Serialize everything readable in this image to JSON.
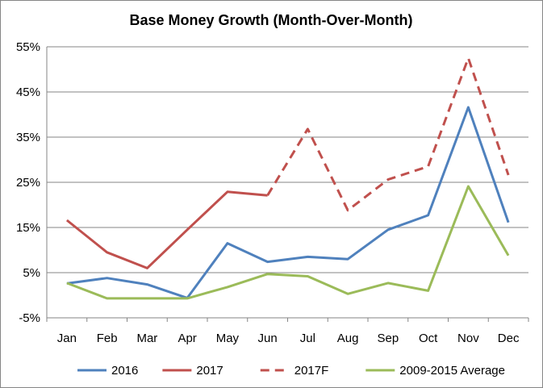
{
  "chart_data": {
    "type": "line",
    "title": "Base Money Growth (Month-Over-Month)",
    "xlabel": "",
    "ylabel": "",
    "categories": [
      "Jan",
      "Feb",
      "Mar",
      "Apr",
      "May",
      "Jun",
      "Jul",
      "Aug",
      "Sep",
      "Oct",
      "Nov",
      "Dec"
    ],
    "ylim": [
      -5,
      55
    ],
    "yticks": [
      -5,
      5,
      15,
      25,
      35,
      45,
      55
    ],
    "ytick_labels": [
      "-5%",
      "5%",
      "15%",
      "25%",
      "35%",
      "45%",
      "55%"
    ],
    "grid": true,
    "legend_position": "bottom",
    "series": [
      {
        "name": "2016",
        "color": "#4f81bd",
        "dash": false,
        "values": [
          2.6,
          3.8,
          2.4,
          -0.6,
          11.5,
          7.4,
          8.5,
          8.0,
          14.5,
          17.7,
          41.6,
          16.1
        ]
      },
      {
        "name": "2017",
        "color": "#c0504d",
        "dash": false,
        "values": [
          16.6,
          9.5,
          6.0,
          14.5,
          22.9,
          22.1,
          null,
          null,
          null,
          null,
          null,
          null
        ]
      },
      {
        "name": "2017F",
        "color": "#c0504d",
        "dash": true,
        "values": [
          null,
          null,
          null,
          null,
          null,
          22.1,
          36.8,
          18.8,
          25.6,
          28.5,
          52.5,
          26.6
        ]
      },
      {
        "name": "2009-2015 Average",
        "color": "#9bbb59",
        "dash": false,
        "values": [
          2.7,
          -0.7,
          -0.7,
          -0.7,
          1.8,
          4.7,
          4.2,
          0.3,
          2.7,
          1.0,
          24.1,
          8.8
        ]
      }
    ]
  }
}
